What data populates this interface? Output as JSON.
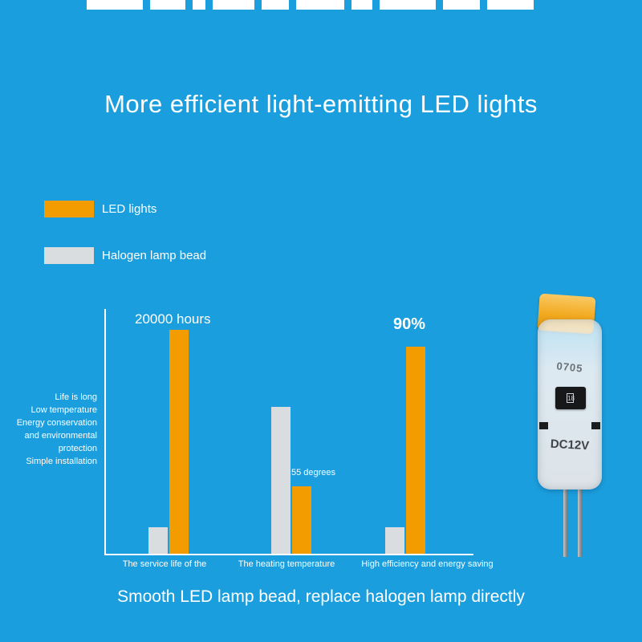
{
  "background_color": "#1b9edd",
  "title": "More efficient light-emitting LED lights",
  "caption": "Smooth LED lamp bead, replace halogen lamp directly",
  "legend": [
    {
      "label": "LED lights",
      "color": "#f39c00"
    },
    {
      "label": "Halogen lamp bead",
      "color": "#d9dde0"
    }
  ],
  "axis_note_lines": [
    "Life is long",
    "Low temperature",
    "Energy conservation",
    "and environmental",
    "protection",
    "Simple installation"
  ],
  "chart_data": {
    "type": "bar",
    "title": "More efficient light-emitting LED lights",
    "categories": [
      "The service life of the",
      "The heating temperature",
      "High efficiency and energy saving"
    ],
    "series": [
      {
        "name": "Halogen lamp bead",
        "color": "#d9dde0",
        "values": [
          11,
          61,
          11
        ]
      },
      {
        "name": "LED lights",
        "color": "#f39c00",
        "values": [
          93,
          28,
          86
        ]
      }
    ],
    "bar_labels": [
      "20000 hours",
      "55 degrees",
      "90%"
    ],
    "values_unit": "relative height percent",
    "ylim": [
      0,
      100
    ],
    "grid": false,
    "legend_position": "top-left"
  },
  "product": {
    "chip_text": "0705",
    "ic_mark": "18",
    "voltage_text": "DC12V"
  }
}
